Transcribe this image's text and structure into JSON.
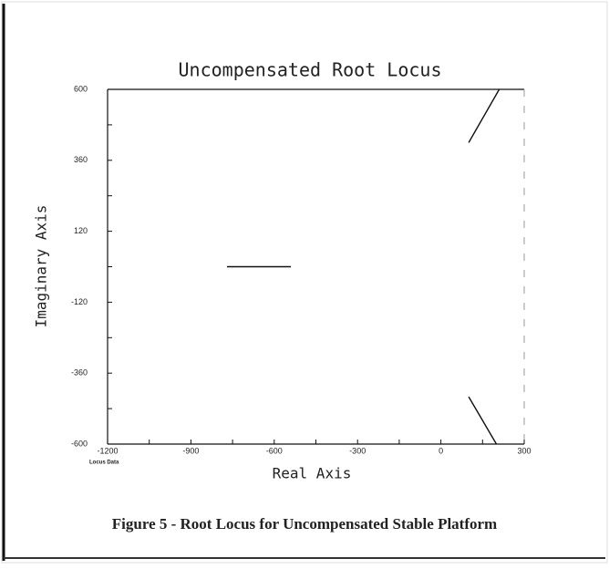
{
  "chart_data": {
    "type": "line",
    "title": "Uncompensated Root Locus",
    "x_label": "Real Axis",
    "y_label": "Imaginary Axis",
    "caption": "Figure 5 - Root Locus for Uncompensated Stable Platform",
    "series": [
      {
        "name": "Locus Data",
        "color": "#111111",
        "x": [
          -770,
          -540,
          null,
          100,
          210,
          null,
          100,
          200
        ],
        "y": [
          0,
          0,
          null,
          420,
          600,
          null,
          -440,
          -600
        ]
      }
    ],
    "xlim": [
      -1200,
      300
    ],
    "ylim": [
      -600,
      600
    ],
    "xticks": [
      -1200,
      -900,
      -600,
      -300,
      0,
      300
    ],
    "yticks": [
      600,
      360,
      120,
      -120,
      -360,
      -600
    ],
    "xticks_minor": [
      -1050,
      -750,
      -450,
      -150,
      150
    ],
    "yticks_minor": [
      480,
      240,
      0,
      -240,
      -480
    ]
  }
}
